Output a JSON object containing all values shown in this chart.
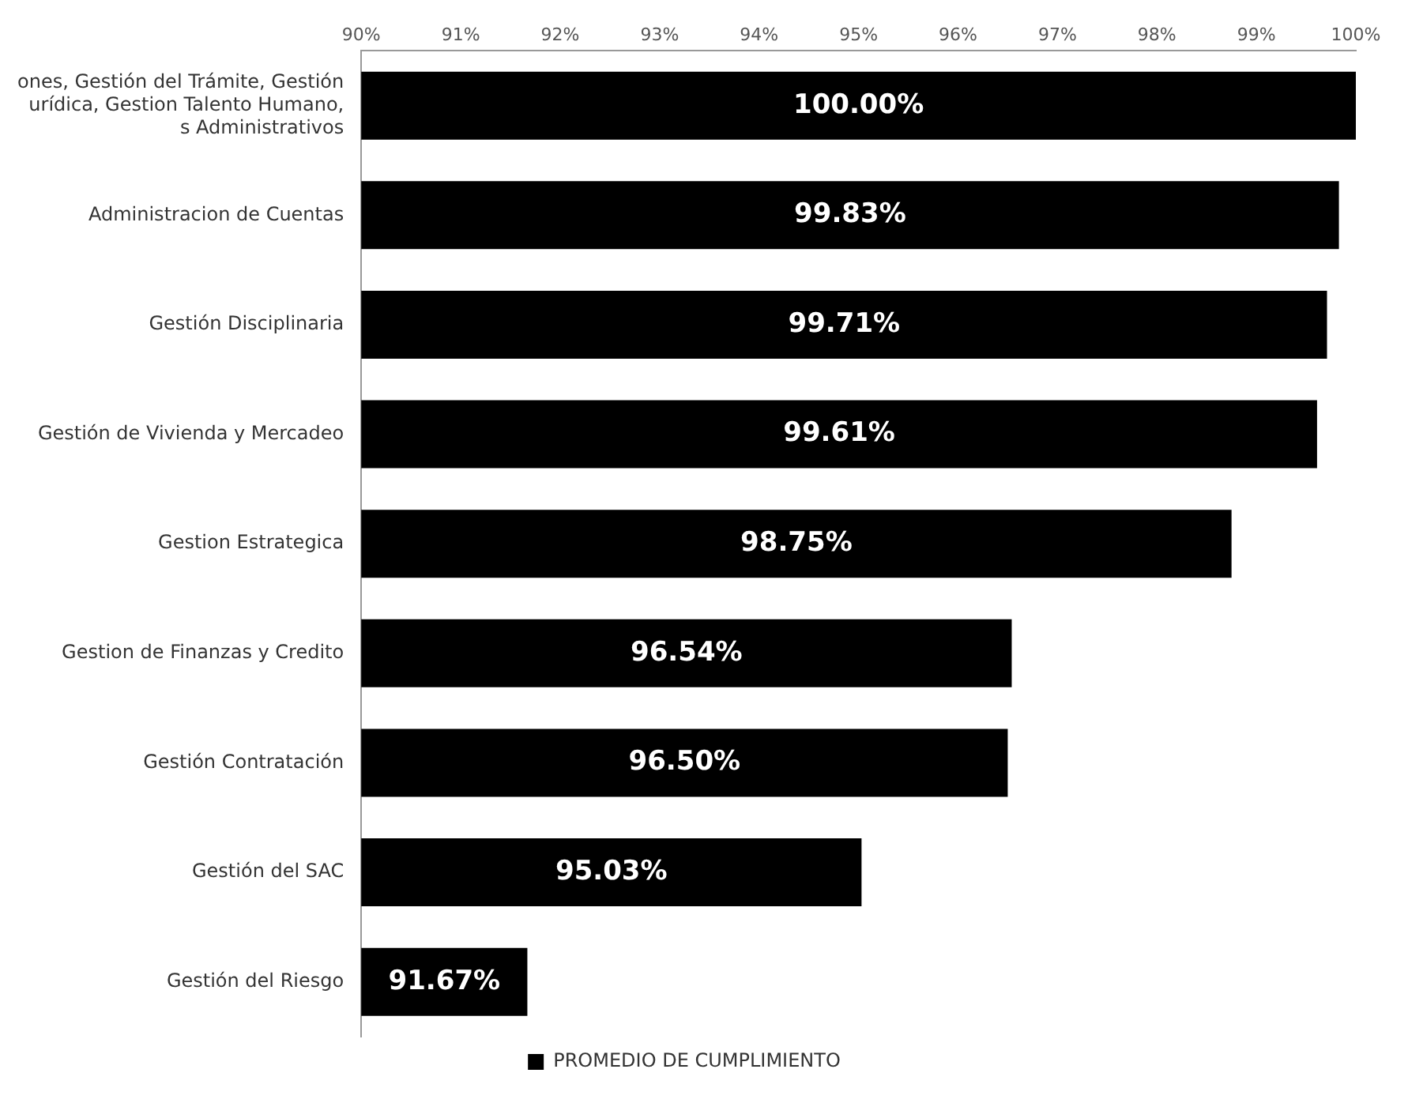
{
  "chart_data": {
    "type": "bar",
    "orientation": "horizontal",
    "categories": [
      "ones, Gestión del Trámite, Gestión\nurídica, Gestion Talento Humano,\ns Administrativos",
      "Administracion de Cuentas",
      "Gestión Disciplinaria",
      "Gestión de Vivienda y Mercadeo",
      "Gestion Estrategica",
      "Gestion de Finanzas y Credito",
      "Gestión Contratación",
      "Gestión del SAC",
      "Gestión del Riesgo"
    ],
    "series": [
      {
        "name": "PROMEDIO DE CUMPLIMIENTO",
        "color": "#000000",
        "values": [
          100,
          99.83,
          99.71,
          99.61,
          98.75,
          96.54,
          96.5,
          95.03,
          91.67
        ],
        "value_labels": [
          "100.00%",
          "99.83%",
          "99.71%",
          "99.61%",
          "98.75%",
          "96.54%",
          "96.50%",
          "95.03%",
          "91.67%"
        ]
      }
    ],
    "xlim": [
      90,
      100
    ],
    "xticks": [
      {
        "value": 90,
        "label": "90%"
      },
      {
        "value": 91,
        "label": "91%"
      },
      {
        "value": 92,
        "label": "92%"
      },
      {
        "value": 93,
        "label": "93%"
      },
      {
        "value": 94,
        "label": "94%"
      },
      {
        "value": 95,
        "label": "95%"
      },
      {
        "value": 96,
        "label": "96%"
      },
      {
        "value": 97,
        "label": "97%"
      },
      {
        "value": 98,
        "label": "98%"
      },
      {
        "value": 99,
        "label": "99%"
      },
      {
        "value": 100,
        "label": "100%"
      }
    ],
    "grid": false,
    "legend": "bottom"
  }
}
